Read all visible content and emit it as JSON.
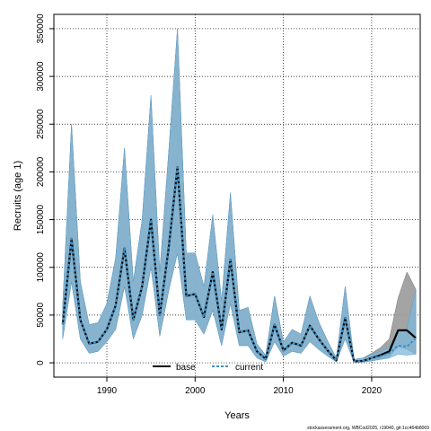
{
  "chart_data": {
    "type": "line",
    "xlabel": "Years",
    "ylabel": "Recruits (age 1)",
    "xlim": [
      1984,
      2025.5
    ],
    "ylim": [
      -15000,
      365000
    ],
    "xticks": [
      1990,
      2000,
      2010,
      2020
    ],
    "yticks": [
      0,
      50000,
      100000,
      150000,
      200000,
      250000,
      300000,
      350000
    ],
    "grid": true,
    "legend_placement": "bottom-center",
    "footnote": "stockassessment.org, WBCod2025, r19040, git:1cc464b8069",
    "colors": {
      "base_band": "#9a9a9a",
      "current_band": "#7eb8dc",
      "base_line": "#000000",
      "current_line": "#3c8fc4"
    },
    "x": [
      1985,
      1986,
      1987,
      1988,
      1989,
      1990,
      1991,
      1992,
      1993,
      1994,
      1995,
      1996,
      1997,
      1998,
      1999,
      2000,
      2001,
      2002,
      2003,
      2004,
      2005,
      2006,
      2007,
      2008,
      2009,
      2010,
      2011,
      2012,
      2013,
      2014,
      2015,
      2016,
      2017,
      2018,
      2019,
      2020,
      2021,
      2022,
      2023,
      2024,
      2025
    ],
    "series": [
      {
        "name": "base",
        "values": [
          40000,
          130000,
          45000,
          20000,
          22000,
          35000,
          60000,
          120000,
          45000,
          80000,
          150000,
          50000,
          120000,
          205000,
          70000,
          72000,
          48000,
          95000,
          35000,
          108000,
          32000,
          34000,
          12000,
          4000,
          40000,
          13000,
          21000,
          18000,
          39000,
          25000,
          13000,
          2500,
          47000,
          1500,
          2000,
          5000,
          8000,
          12000,
          34000,
          34000,
          26000
        ],
        "lower": [
          25000,
          85000,
          25000,
          10000,
          12000,
          22000,
          35000,
          80000,
          25000,
          50000,
          100000,
          28000,
          75000,
          115000,
          45000,
          45000,
          30000,
          55000,
          18000,
          62000,
          18000,
          18000,
          5000,
          1000,
          22000,
          7000,
          12000,
          10000,
          22000,
          14000,
          7000,
          1000,
          25000,
          500,
          800,
          2000,
          4000,
          6000,
          17000,
          14000,
          9000
        ],
        "upper": [
          60000,
          250000,
          85000,
          40000,
          42000,
          62000,
          110000,
          225000,
          85000,
          150000,
          280000,
          95000,
          220000,
          350000,
          115000,
          115000,
          80000,
          155000,
          65000,
          178000,
          55000,
          58000,
          20000,
          8000,
          70000,
          22000,
          35000,
          30000,
          70000,
          43000,
          23000,
          5000,
          80000,
          3500,
          5000,
          10000,
          16000,
          25000,
          68000,
          95000,
          77000
        ]
      },
      {
        "name": "current",
        "values": [
          40000,
          130000,
          45000,
          20000,
          22000,
          35000,
          60000,
          120000,
          45000,
          80000,
          150000,
          50000,
          120000,
          205000,
          70000,
          72000,
          48000,
          95000,
          35000,
          108000,
          32000,
          34000,
          12000,
          4000,
          40000,
          13000,
          21000,
          18000,
          39000,
          25000,
          13000,
          2500,
          47000,
          1500,
          2000,
          5000,
          7000,
          10000,
          18000,
          17000,
          26000
        ],
        "lower": [
          25000,
          85000,
          25000,
          10000,
          12000,
          22000,
          35000,
          80000,
          25000,
          50000,
          100000,
          28000,
          75000,
          115000,
          45000,
          45000,
          30000,
          55000,
          18000,
          62000,
          18000,
          18000,
          5000,
          1000,
          22000,
          7000,
          12000,
          10000,
          22000,
          14000,
          7000,
          1000,
          25000,
          500,
          800,
          2000,
          3500,
          5000,
          9000,
          8000,
          9000
        ],
        "upper": [
          60000,
          250000,
          85000,
          40000,
          42000,
          62000,
          110000,
          225000,
          85000,
          150000,
          280000,
          95000,
          220000,
          350000,
          115000,
          115000,
          80000,
          155000,
          65000,
          178000,
          55000,
          58000,
          20000,
          8000,
          70000,
          22000,
          35000,
          30000,
          70000,
          43000,
          23000,
          5000,
          80000,
          3500,
          5000,
          9000,
          12000,
          17000,
          33000,
          36000,
          77000
        ]
      }
    ]
  }
}
